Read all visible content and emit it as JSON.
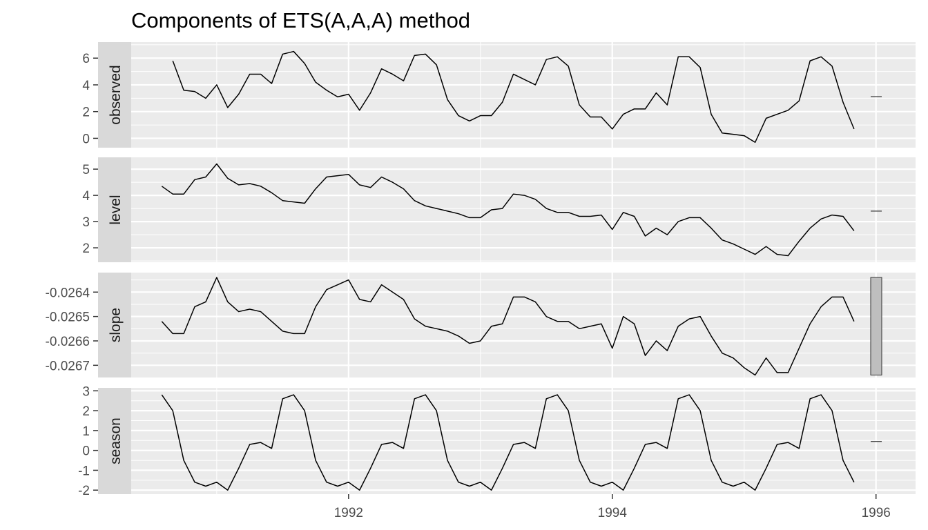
{
  "chart_data": {
    "type": "line",
    "title": "Components of ETS(A,A,A) method",
    "xlabel": "",
    "ylabel": "",
    "xlim": [
      1990.1,
      1996.3
    ],
    "x_ticks": [
      {
        "value": 1992,
        "label": "1992"
      },
      {
        "value": 1994,
        "label": "1994"
      },
      {
        "value": 1996,
        "label": "1996"
      }
    ],
    "grid": true,
    "panels": [
      {
        "name": "observed",
        "x_start": 1990.6667,
        "x_step": 0.0833333,
        "ylim": [
          -0.7,
          7.2
        ],
        "y_ticks": [
          {
            "value": 0,
            "label": "0"
          },
          {
            "value": 2,
            "label": "2"
          },
          {
            "value": 4,
            "label": "4"
          },
          {
            "value": 6,
            "label": "6"
          }
        ],
        "values": [
          5.8,
          3.6,
          3.5,
          3.0,
          4.0,
          2.3,
          3.3,
          4.8,
          4.8,
          4.1,
          6.3,
          6.5,
          5.6,
          4.2,
          3.6,
          3.1,
          3.3,
          2.1,
          3.4,
          5.2,
          4.8,
          4.3,
          6.2,
          6.3,
          5.5,
          2.9,
          1.7,
          1.3,
          1.7,
          1.7,
          2.7,
          4.8,
          4.4,
          4.0,
          5.9,
          6.1,
          5.4,
          2.5,
          1.6,
          1.6,
          0.7,
          1.8,
          2.2,
          2.2,
          3.4,
          2.5,
          6.1,
          6.1,
          5.3,
          1.8,
          0.4,
          0.3,
          0.2,
          -0.3,
          1.5,
          1.8,
          2.1,
          2.8,
          5.8,
          6.1,
          5.4,
          2.7,
          0.7
        ],
        "interval_value": 3.12
      },
      {
        "name": "level",
        "x_start": 1990.5833,
        "x_step": 0.0833333,
        "ylim": [
          1.45,
          5.45
        ],
        "y_ticks": [
          {
            "value": 2,
            "label": "2"
          },
          {
            "value": 3,
            "label": "3"
          },
          {
            "value": 4,
            "label": "4"
          },
          {
            "value": 5,
            "label": "5"
          }
        ],
        "values": [
          4.35,
          4.05,
          4.05,
          4.6,
          4.7,
          5.2,
          4.65,
          4.4,
          4.45,
          4.35,
          4.1,
          3.8,
          3.75,
          3.7,
          4.25,
          4.7,
          4.75,
          4.8,
          4.4,
          4.3,
          4.7,
          4.5,
          4.25,
          3.8,
          3.6,
          3.5,
          3.4,
          3.3,
          3.15,
          3.15,
          3.45,
          3.5,
          4.05,
          4.0,
          3.85,
          3.5,
          3.35,
          3.35,
          3.2,
          3.2,
          3.25,
          2.7,
          3.35,
          3.2,
          2.45,
          2.75,
          2.5,
          3.0,
          3.15,
          3.15,
          2.75,
          2.3,
          2.15,
          1.95,
          1.75,
          2.05,
          1.75,
          1.7,
          2.25,
          2.75,
          3.1,
          3.25,
          3.2,
          2.65
        ],
        "interval_value": 3.4
      },
      {
        "name": "slope",
        "x_start": 1990.5833,
        "x_step": 0.0833333,
        "ylim": [
          -0.02675,
          -0.02632
        ],
        "y_ticks": [
          {
            "value": -0.0267,
            "label": "-0.0267"
          },
          {
            "value": -0.0266,
            "label": "-0.0266"
          },
          {
            "value": -0.0265,
            "label": "-0.0265"
          },
          {
            "value": -0.0264,
            "label": "-0.0264"
          }
        ],
        "values": [
          -0.02652,
          -0.02657,
          -0.02657,
          -0.02646,
          -0.02644,
          -0.02634,
          -0.02644,
          -0.02648,
          -0.02647,
          -0.02648,
          -0.02652,
          -0.02656,
          -0.02657,
          -0.02657,
          -0.02646,
          -0.02639,
          -0.02637,
          -0.02635,
          -0.02643,
          -0.02644,
          -0.02637,
          -0.0264,
          -0.02643,
          -0.02651,
          -0.02654,
          -0.02655,
          -0.02656,
          -0.02658,
          -0.02661,
          -0.0266,
          -0.02654,
          -0.02653,
          -0.02642,
          -0.02642,
          -0.02644,
          -0.0265,
          -0.02652,
          -0.02652,
          -0.02655,
          -0.02654,
          -0.02653,
          -0.02663,
          -0.0265,
          -0.02653,
          -0.02666,
          -0.0266,
          -0.02664,
          -0.02654,
          -0.02651,
          -0.0265,
          -0.02658,
          -0.02665,
          -0.02667,
          -0.02671,
          -0.02674,
          -0.02667,
          -0.02673,
          -0.02673,
          -0.02663,
          -0.02653,
          -0.02646,
          -0.02642,
          -0.02642,
          -0.02652
        ],
        "interval_top": -0.02634,
        "interval_bottom": -0.02674
      },
      {
        "name": "season",
        "x_start": 1990.5833,
        "x_step": 0.0833333,
        "ylim": [
          -2.2,
          3.15
        ],
        "y_ticks": [
          {
            "value": -2,
            "label": "-2"
          },
          {
            "value": -1,
            "label": "-1"
          },
          {
            "value": 0,
            "label": "0"
          },
          {
            "value": 1,
            "label": "1"
          },
          {
            "value": 2,
            "label": "2"
          },
          {
            "value": 3,
            "label": "3"
          }
        ],
        "values": [
          2.8,
          2.0,
          -0.5,
          -1.6,
          -1.8,
          -1.6,
          -2.0,
          -0.9,
          0.3,
          0.4,
          0.1,
          2.6,
          2.8,
          2.0,
          -0.5,
          -1.6,
          -1.8,
          -1.6,
          -2.0,
          -0.9,
          0.3,
          0.4,
          0.1,
          2.6,
          2.8,
          2.0,
          -0.5,
          -1.6,
          -1.8,
          -1.6,
          -2.0,
          -0.9,
          0.3,
          0.4,
          0.1,
          2.6,
          2.8,
          2.0,
          -0.5,
          -1.6,
          -1.8,
          -1.6,
          -2.0,
          -0.9,
          0.3,
          0.4,
          0.1,
          2.6,
          2.8,
          2.0,
          -0.5,
          -1.6,
          -1.8,
          -1.6,
          -2.0,
          -0.9,
          0.3,
          0.4,
          0.1,
          2.6,
          2.8,
          2.0,
          -0.5,
          -1.6
        ],
        "interval_value": 0.45
      }
    ]
  },
  "colors": {
    "panel_background": "#ebebeb",
    "grid_major": "#ffffff",
    "strip_background": "#d9d9d9",
    "line": "#000000",
    "interval_fill": "#bebebe"
  }
}
